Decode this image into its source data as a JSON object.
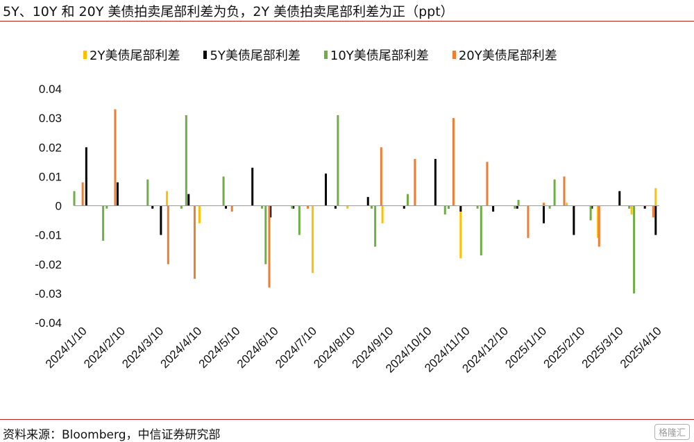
{
  "header": {
    "title": "5Y、10Y 和 20Y 美债拍卖尾部利差为负，2Y 美债拍卖尾部利差为正（ppt）"
  },
  "footer": {
    "source": "资料来源：Bloomberg，中信证券研究部",
    "watermark": "格隆汇"
  },
  "colors": {
    "rule": "#b22222",
    "s2y": "#FFC000",
    "s5y": "#000000",
    "s10y": "#70AD47",
    "s20y": "#ED7D31"
  },
  "chart_data": {
    "type": "bar",
    "ylim": [
      -0.04,
      0.04
    ],
    "yticks": [
      "0.04",
      "0.03",
      "0.02",
      "0.01",
      "0",
      "-0.01",
      "-0.02",
      "-0.03",
      "-0.04"
    ],
    "ytick_values": [
      0.04,
      0.03,
      0.02,
      0.01,
      0,
      -0.01,
      -0.02,
      -0.03,
      -0.04
    ],
    "xlabels": [
      "2024/1/10",
      "2024/2/10",
      "2024/3/10",
      "2024/4/10",
      "2024/5/10",
      "2024/6/10",
      "2024/7/10",
      "2024/8/10",
      "2024/9/10",
      "2024/10/10",
      "2024/11/10",
      "2024/12/10",
      "2025/1/10",
      "2025/2/10",
      "2025/3/10",
      "2025/4/10"
    ],
    "legend_position": "top",
    "series": [
      {
        "name": "2Y美债尾部利差",
        "color": "#FFC000",
        "points": [
          {
            "d": "2024-03-27",
            "v": 0.005
          },
          {
            "d": "2024-04-23",
            "v": -0.006
          },
          {
            "d": "2024-07-26",
            "v": -0.023
          },
          {
            "d": "2024-08-24",
            "v": -0.001
          },
          {
            "d": "2024-09-22",
            "v": -0.006
          },
          {
            "d": "2024-11-26",
            "v": -0.018
          },
          {
            "d": "2025-02-22",
            "v": 0.001
          },
          {
            "d": "2025-03-20",
            "v": -0.011
          },
          {
            "d": "2025-04-17",
            "v": -0.003
          },
          {
            "d": "2025-05-07",
            "v": 0.006
          }
        ]
      },
      {
        "name": "5Y美债尾部利差",
        "color": "#000000",
        "points": [
          {
            "d": "2024-01-20",
            "v": 0.02
          },
          {
            "d": "2024-02-15",
            "v": 0.008
          },
          {
            "d": "2024-03-15",
            "v": -0.001
          },
          {
            "d": "2024-03-22",
            "v": -0.01
          },
          {
            "d": "2024-04-14",
            "v": 0.004
          },
          {
            "d": "2024-05-15",
            "v": -0.001
          },
          {
            "d": "2024-06-06",
            "v": 0.013
          },
          {
            "d": "2024-06-21",
            "v": -0.004
          },
          {
            "d": "2024-07-10",
            "v": -0.001
          },
          {
            "d": "2024-08-06",
            "v": 0.011
          },
          {
            "d": "2024-08-14",
            "v": -0.001
          },
          {
            "d": "2024-09-10",
            "v": 0.003
          },
          {
            "d": "2024-10-10",
            "v": -0.001
          },
          {
            "d": "2024-11-05",
            "v": 0.016
          },
          {
            "d": "2024-11-16",
            "v": -0.001
          },
          {
            "d": "2024-11-26",
            "v": -0.002
          },
          {
            "d": "2024-12-23",
            "v": -0.002
          },
          {
            "d": "2025-01-12",
            "v": -0.001
          },
          {
            "d": "2025-02-03",
            "v": -0.006
          },
          {
            "d": "2025-02-28",
            "v": -0.01
          },
          {
            "d": "2025-03-15",
            "v": -0.001
          },
          {
            "d": "2025-04-07",
            "v": 0.005
          },
          {
            "d": "2025-04-28",
            "v": -0.001
          },
          {
            "d": "2025-05-07",
            "v": -0.01
          }
        ]
      },
      {
        "name": "10Y美债尾部利差",
        "color": "#70AD47",
        "points": [
          {
            "d": "2024-01-10",
            "v": 0.005
          },
          {
            "d": "2024-02-03",
            "v": -0.012
          },
          {
            "d": "2024-02-06",
            "v": -0.001
          },
          {
            "d": "2024-03-11",
            "v": 0.009
          },
          {
            "d": "2024-04-08",
            "v": -0.001
          },
          {
            "d": "2024-04-12",
            "v": 0.031
          },
          {
            "d": "2024-05-13",
            "v": 0.01
          },
          {
            "d": "2024-06-14",
            "v": -0.001
          },
          {
            "d": "2024-06-17",
            "v": -0.02
          },
          {
            "d": "2024-07-09",
            "v": -0.001
          },
          {
            "d": "2024-07-15",
            "v": -0.01
          },
          {
            "d": "2024-08-16",
            "v": 0.031
          },
          {
            "d": "2024-09-13",
            "v": -0.001
          },
          {
            "d": "2024-09-16",
            "v": -0.014
          },
          {
            "d": "2024-10-13",
            "v": 0.004
          },
          {
            "d": "2024-11-13",
            "v": -0.003
          },
          {
            "d": "2024-11-16",
            "v": -0.001
          },
          {
            "d": "2024-12-10",
            "v": -0.001
          },
          {
            "d": "2024-12-13",
            "v": -0.017
          },
          {
            "d": "2025-01-10",
            "v": -0.001
          },
          {
            "d": "2025-01-13",
            "v": 0.002
          },
          {
            "d": "2025-02-08",
            "v": -0.001
          },
          {
            "d": "2025-02-12",
            "v": 0.009
          },
          {
            "d": "2025-03-14",
            "v": -0.005
          },
          {
            "d": "2025-04-15",
            "v": -0.001
          },
          {
            "d": "2025-04-19",
            "v": -0.03
          }
        ]
      },
      {
        "name": "20Y美债尾部利差",
        "color": "#ED7D31",
        "points": [
          {
            "d": "2024-01-17",
            "v": 0.008
          },
          {
            "d": "2024-02-13",
            "v": 0.033
          },
          {
            "d": "2024-03-28",
            "v": -0.02
          },
          {
            "d": "2024-04-19",
            "v": -0.025
          },
          {
            "d": "2024-05-20",
            "v": -0.002
          },
          {
            "d": "2024-06-20",
            "v": -0.028
          },
          {
            "d": "2024-07-22",
            "v": -0.001
          },
          {
            "d": "2024-09-21",
            "v": 0.02
          },
          {
            "d": "2024-10-19",
            "v": 0.016
          },
          {
            "d": "2024-11-20",
            "v": 0.03
          },
          {
            "d": "2024-12-18",
            "v": 0.015
          },
          {
            "d": "2025-01-21",
            "v": -0.011
          },
          {
            "d": "2025-02-03",
            "v": 0.001
          },
          {
            "d": "2025-02-20",
            "v": 0.01
          },
          {
            "d": "2025-03-21",
            "v": -0.014
          },
          {
            "d": "2025-05-05",
            "v": -0.004
          }
        ]
      }
    ]
  }
}
